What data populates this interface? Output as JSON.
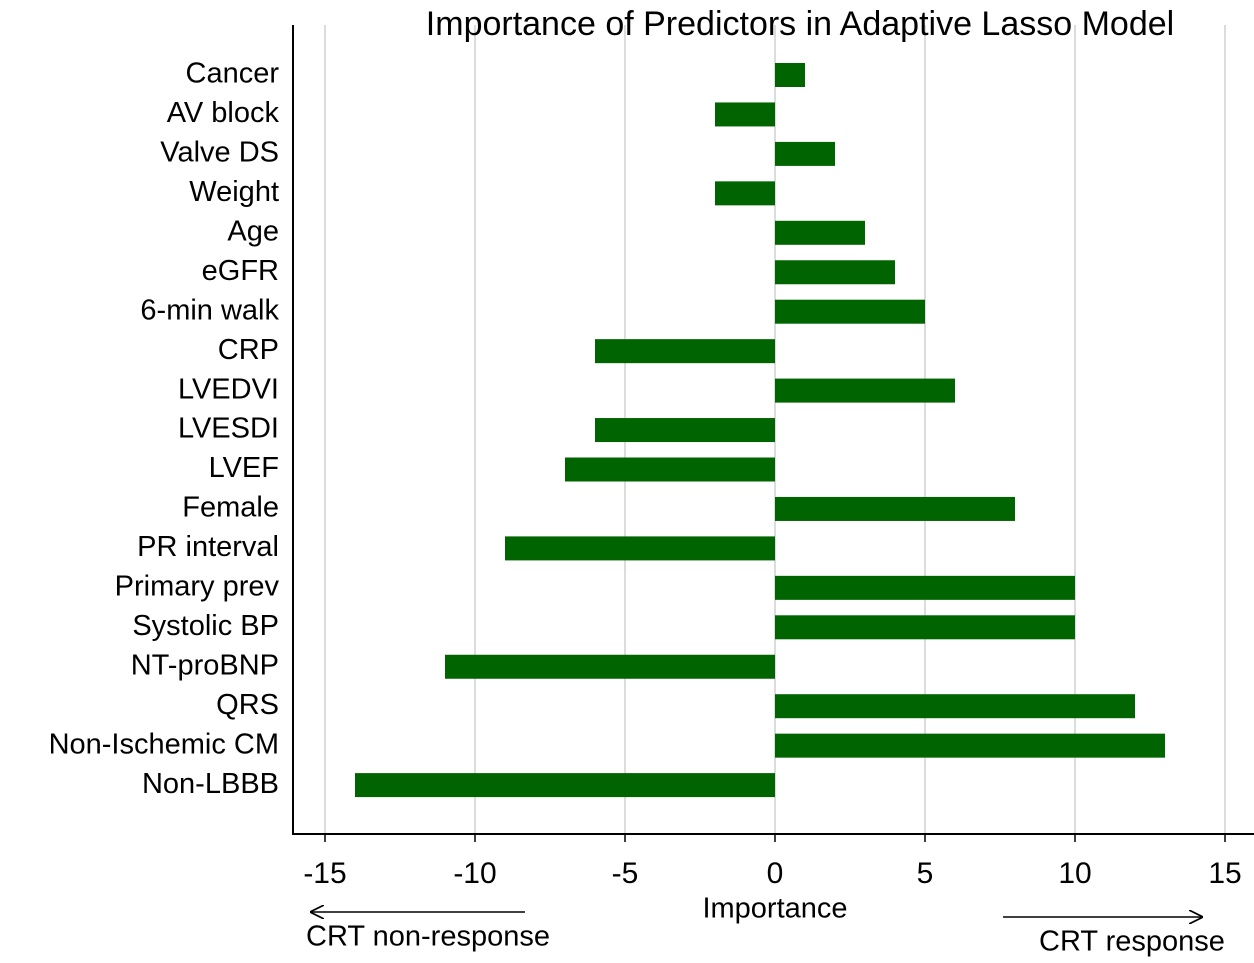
{
  "chart_data": {
    "type": "barh",
    "title": "Importance of Predictors in Adaptive Lasso Model",
    "xlabel": "Importance",
    "annotations": [
      "CRT non-response",
      "CRT response"
    ],
    "categories": [
      "Cancer",
      "AV block",
      "Valve DS",
      "Weight",
      "Age",
      "eGFR",
      "6-min walk",
      "CRP",
      "LVEDVI",
      "LVESDI",
      "LVEF",
      "Female",
      "PR interval",
      "Primary prev",
      "Systolic BP",
      "NT-proBNP",
      "QRS",
      "Non-Ischemic CM",
      "Non-LBBB"
    ],
    "values": [
      1,
      -2,
      2,
      -2,
      3,
      4,
      5,
      -6,
      6,
      -6,
      -7,
      8,
      -9,
      10,
      10,
      -11,
      12,
      13,
      -14
    ],
    "color": "#006400",
    "xlim": [
      -16,
      16
    ],
    "xticks": [
      -15,
      -10,
      -5,
      0,
      5,
      10,
      15
    ],
    "grid": true
  }
}
